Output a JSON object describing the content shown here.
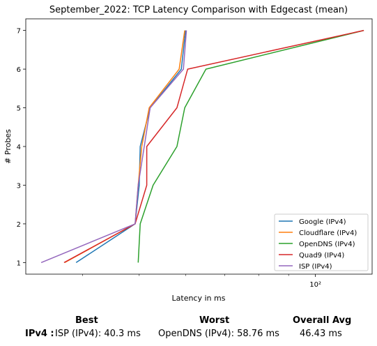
{
  "chart_data": {
    "type": "line",
    "title": "September_2022: TCP Latency Comparison with Edgecast (mean)",
    "xlabel": "Latency in ms",
    "ylabel": "# Probes",
    "xscale": "log",
    "xlim": [
      32,
      125
    ],
    "ylim": [
      0.7,
      7.3
    ],
    "yticks": [
      "1",
      "2",
      "3",
      "4",
      "5",
      "6",
      "7"
    ],
    "xticks": [
      {
        "value": 100,
        "label": "10²"
      }
    ],
    "grid": false,
    "legend": "bottom-right",
    "series": [
      {
        "name": "Google (IPv4)",
        "color": "#1f77b4",
        "points": [
          [
            39.0,
            1
          ],
          [
            49.2,
            2
          ],
          [
            50.0,
            3
          ],
          [
            50.2,
            4
          ],
          [
            52.2,
            5
          ],
          [
            59.0,
            6
          ],
          [
            60.0,
            7
          ]
        ]
      },
      {
        "name": "Cloudflare (IPv4)",
        "color": "#ff7f0e",
        "points": [
          [
            37.3,
            1
          ],
          [
            49.2,
            2
          ],
          [
            49.8,
            3
          ],
          [
            50.5,
            4
          ],
          [
            52.0,
            5
          ],
          [
            58.5,
            6
          ],
          [
            59.8,
            7
          ]
        ]
      },
      {
        "name": "OpenDNS (IPv4)",
        "color": "#2ca02c",
        "points": [
          [
            49.8,
            1
          ],
          [
            50.2,
            2
          ],
          [
            52.8,
            3
          ],
          [
            58.0,
            4
          ],
          [
            59.8,
            5
          ],
          [
            65.0,
            6
          ],
          [
            121.0,
            7
          ]
        ]
      },
      {
        "name": "Quad9 (IPv4)",
        "color": "#d62728",
        "points": [
          [
            37.2,
            1
          ],
          [
            49.2,
            2
          ],
          [
            51.5,
            3
          ],
          [
            51.5,
            4
          ],
          [
            58.0,
            5
          ],
          [
            60.5,
            6
          ],
          [
            121.0,
            7
          ]
        ]
      },
      {
        "name": "ISP (IPv4)",
        "color": "#9467bd",
        "points": [
          [
            34.0,
            1
          ],
          [
            49.2,
            2
          ],
          [
            49.8,
            3
          ],
          [
            51.0,
            4
          ],
          [
            52.2,
            5
          ],
          [
            59.5,
            6
          ],
          [
            60.2,
            7
          ]
        ]
      }
    ]
  },
  "summary": {
    "best_header": "Best",
    "worst_header": "Worst",
    "avg_header": "Overall Avg",
    "row_label": "IPv4 :",
    "best_value": "ISP (IPv4): 40.3 ms",
    "worst_value": "OpenDNS (IPv4): 58.76 ms",
    "avg_value": "46.43 ms"
  }
}
